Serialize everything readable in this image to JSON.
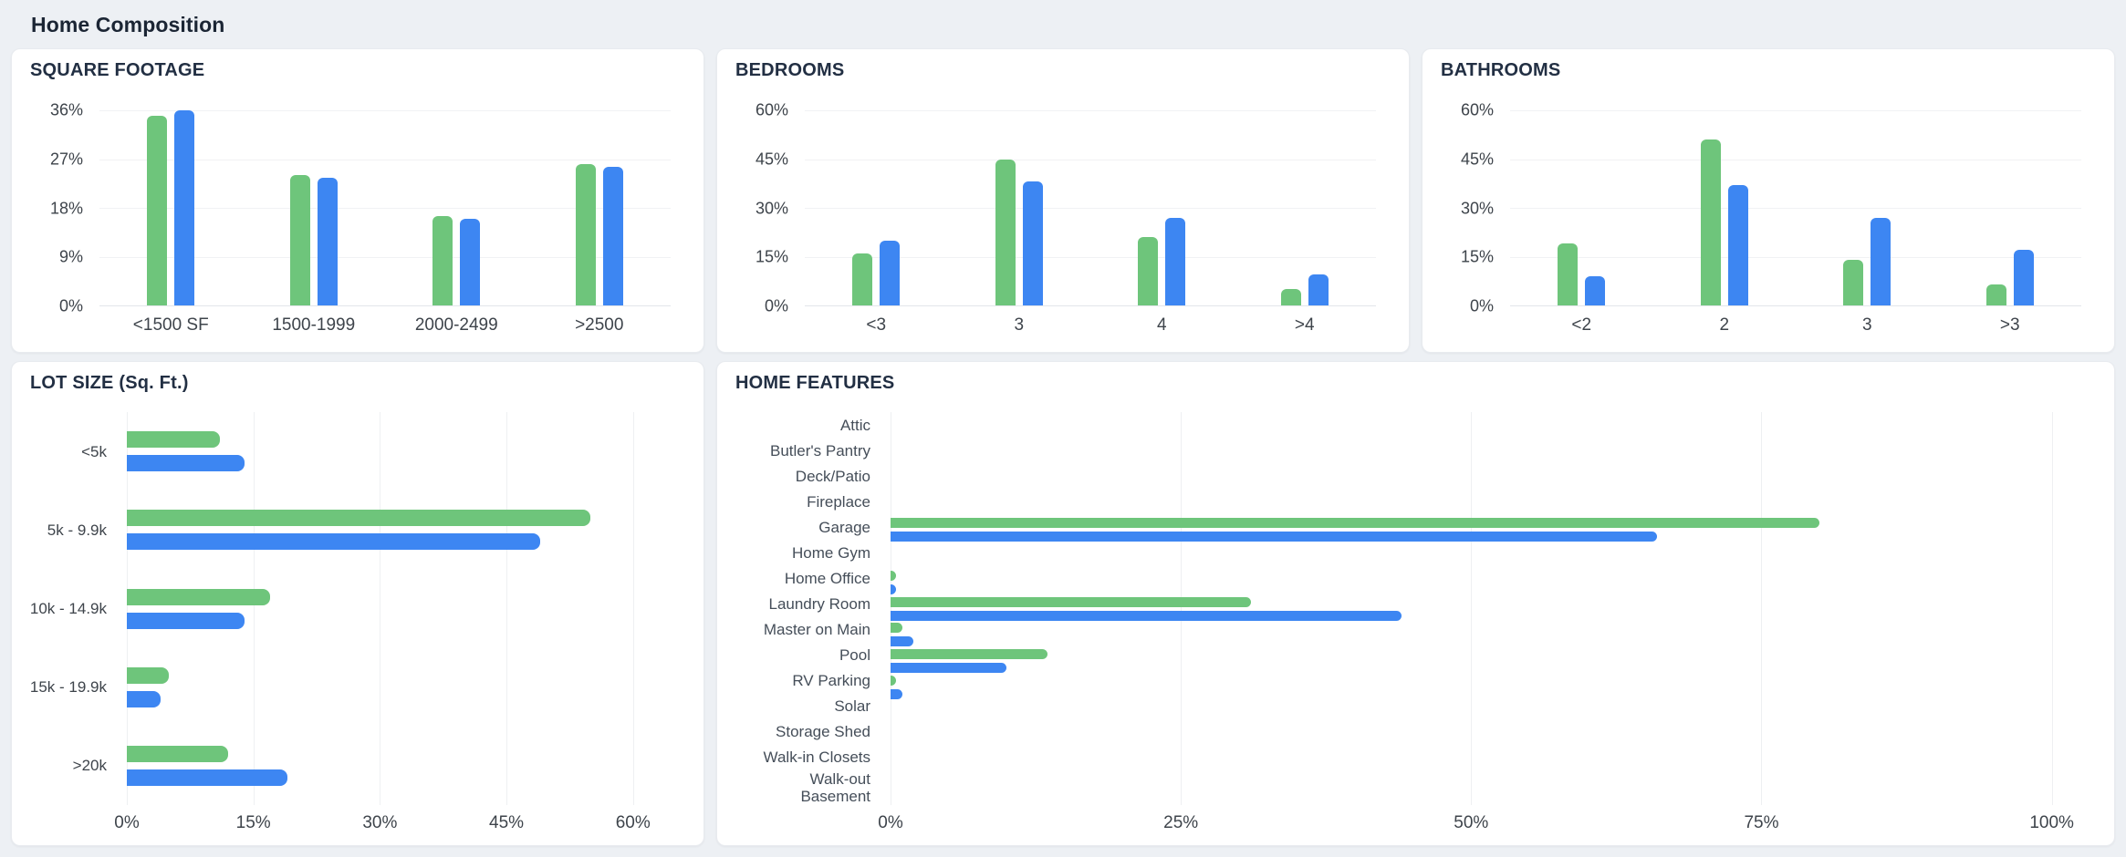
{
  "header": {
    "title": "Home Composition"
  },
  "colors": {
    "series_green": "#6EC57B",
    "series_blue": "#3D86F2",
    "grid_line": "#f1f2f4",
    "axis_label": "#3e444b",
    "card_title": "#222f43",
    "page_background": "#edf0f4",
    "card_background": "#ffffff"
  },
  "chart_data": [
    {
      "id": "square-footage",
      "type": "bar",
      "orientation": "vertical",
      "title": "SQUARE FOOTAGE",
      "categories": [
        "<1500 SF",
        "1500-1999",
        "2000-2499",
        ">2500"
      ],
      "series": [
        {
          "name": "series_green",
          "values": [
            35,
            24,
            16.5,
            26
          ]
        },
        {
          "name": "series_blue",
          "values": [
            36,
            23.5,
            16,
            25.5
          ]
        }
      ],
      "y_ticks": [
        "36%",
        "27%",
        "18%",
        "9%",
        "0%"
      ],
      "ylim": [
        0,
        36
      ],
      "grid": "horizontal",
      "legend": "none"
    },
    {
      "id": "bedrooms",
      "type": "bar",
      "orientation": "vertical",
      "title": "BEDROOMS",
      "categories": [
        "<3",
        "3",
        "4",
        ">4"
      ],
      "series": [
        {
          "name": "series_green",
          "values": [
            16,
            45,
            21,
            5
          ]
        },
        {
          "name": "series_blue",
          "values": [
            20,
            38,
            27,
            9.5
          ]
        }
      ],
      "y_ticks": [
        "60%",
        "45%",
        "30%",
        "15%",
        "0%"
      ],
      "ylim": [
        0,
        60
      ],
      "grid": "horizontal",
      "legend": "none"
    },
    {
      "id": "bathrooms",
      "type": "bar",
      "orientation": "vertical",
      "title": "BATHROOMS",
      "categories": [
        "<2",
        "2",
        "3",
        ">3"
      ],
      "series": [
        {
          "name": "series_green",
          "values": [
            19,
            51,
            14,
            6.5
          ]
        },
        {
          "name": "series_blue",
          "values": [
            9,
            37,
            27,
            17
          ]
        }
      ],
      "y_ticks": [
        "60%",
        "45%",
        "30%",
        "15%",
        "0%"
      ],
      "ylim": [
        0,
        60
      ],
      "grid": "horizontal",
      "legend": "none"
    },
    {
      "id": "lot-size",
      "type": "bar",
      "orientation": "horizontal",
      "title": "LOT SIZE (Sq. Ft.)",
      "categories": [
        "<5k",
        "5k - 9.9k",
        "10k - 14.9k",
        "15k - 19.9k",
        ">20k"
      ],
      "series": [
        {
          "name": "series_green",
          "values": [
            11,
            55,
            17,
            5,
            12
          ]
        },
        {
          "name": "series_blue",
          "values": [
            14,
            49,
            14,
            4,
            19
          ]
        }
      ],
      "x_ticks": [
        "0%",
        "15%",
        "30%",
        "45%",
        "60%"
      ],
      "x_tick_values": [
        0,
        15,
        30,
        45,
        60
      ],
      "xlim": [
        0,
        60
      ],
      "grid": "vertical",
      "legend": "none"
    },
    {
      "id": "home-features",
      "type": "bar",
      "orientation": "horizontal",
      "title": "HOME FEATURES",
      "categories": [
        "Attic",
        "Butler's Pantry",
        "Deck/Patio",
        "Fireplace",
        "Garage",
        "Home Gym",
        "Home Office",
        "Laundry Room",
        "Master on Main",
        "Pool",
        "RV Parking",
        "Solar",
        "Storage Shed",
        "Walk-in Closets",
        "Walk-out Basement"
      ],
      "series": [
        {
          "name": "series_green",
          "values": [
            0,
            0,
            0,
            0,
            80,
            0,
            0.5,
            31,
            1,
            13.5,
            0.5,
            0,
            0,
            0,
            0
          ]
        },
        {
          "name": "series_blue",
          "values": [
            0,
            0,
            0,
            0,
            66,
            0,
            0.5,
            44,
            2,
            10,
            1,
            0,
            0,
            0,
            0
          ]
        }
      ],
      "x_ticks": [
        "0%",
        "25%",
        "50%",
        "75%",
        "100%"
      ],
      "x_tick_values": [
        0,
        25,
        50,
        75,
        100
      ],
      "xlim": [
        0,
        100
      ],
      "grid": "vertical",
      "legend": "none"
    }
  ]
}
